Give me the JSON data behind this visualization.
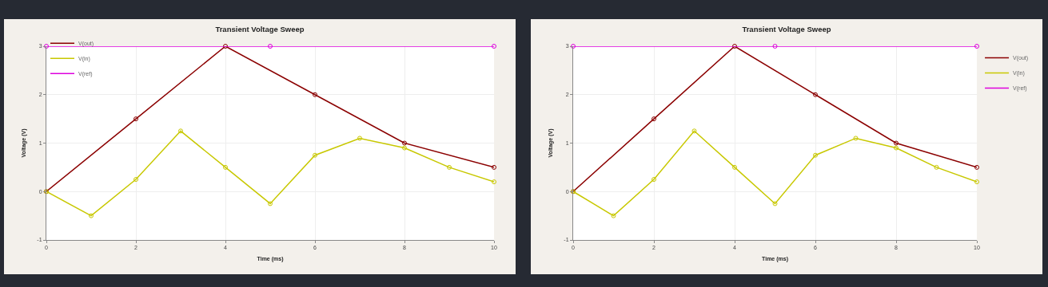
{
  "chart_data": [
    {
      "type": "line",
      "title": "Transient Voltage Sweep",
      "xlabel": "Time (ms)",
      "ylabel": "Voltage (V)",
      "xlim": [
        0,
        10
      ],
      "xticks": [
        0,
        2,
        4,
        6,
        8,
        10
      ],
      "ylim": [
        -1,
        3
      ],
      "yticks": [
        -1,
        0,
        1,
        2,
        3
      ],
      "grid": true,
      "legend": "top left",
      "marker": "circle",
      "line_style": "solid",
      "series": [
        {
          "name": "V(out)",
          "color": "#8b0000",
          "x": [
            0,
            2,
            4,
            6,
            8,
            10
          ],
          "values": [
            0,
            1.5,
            3,
            2,
            1,
            0.5
          ]
        },
        {
          "name": "V(in)",
          "color": "#c8c800",
          "x": [
            0,
            1,
            2,
            3,
            4,
            5,
            6,
            7,
            8,
            9,
            10
          ],
          "values": [
            0,
            -0.5,
            0.25,
            1.25,
            0.5,
            -0.25,
            0.75,
            1.1,
            0.9,
            0.5,
            0.2
          ]
        },
        {
          "name": "V(ref)",
          "color": "#dd00dd",
          "x": [
            0,
            5,
            10
          ],
          "values": [
            3,
            3,
            3
          ]
        }
      ]
    },
    {
      "type": "line",
      "title": "Transient Voltage Sweep",
      "xlabel": "Time (ms)",
      "ylabel": "Voltage (V)",
      "xlim": [
        0,
        10
      ],
      "xticks": [
        0,
        2,
        4,
        6,
        8,
        10
      ],
      "ylim": [
        -1,
        3
      ],
      "yticks": [
        -1,
        0,
        1,
        2,
        3
      ],
      "grid": true,
      "legend": "right",
      "marker": "circle",
      "line_style": "solid",
      "series": [
        {
          "name": "V(out)",
          "color": "#8b0000",
          "x": [
            0,
            2,
            4,
            6,
            8,
            10
          ],
          "values": [
            0,
            1.5,
            3,
            2,
            1,
            0.5
          ]
        },
        {
          "name": "V(in)",
          "color": "#c8c800",
          "x": [
            0,
            1,
            2,
            3,
            4,
            5,
            6,
            7,
            8,
            9,
            10
          ],
          "values": [
            0,
            -0.5,
            0.25,
            1.25,
            0.5,
            -0.25,
            0.75,
            1.1,
            0.9,
            0.5,
            0.2
          ]
        },
        {
          "name": "V(ref)",
          "color": "#dd00dd",
          "x": [
            0,
            5,
            10
          ],
          "values": [
            3,
            3,
            3
          ]
        }
      ]
    }
  ]
}
